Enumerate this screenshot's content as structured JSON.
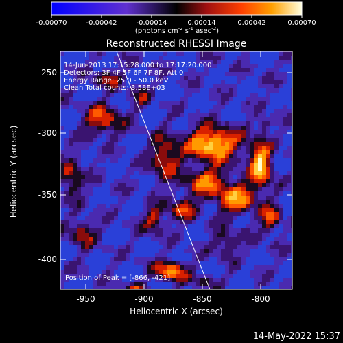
{
  "colorbar": {
    "ticks": [
      "-0.00070",
      "-0.00042",
      "-0.00014",
      "0.00014",
      "0.00042",
      "0.00070"
    ],
    "units_main": "(photons cm",
    "units_sup1": "-2",
    "units_mid1": " s",
    "units_sup2": "-1",
    "units_mid2": " asec",
    "units_sup3": "-2",
    "units_end": ")"
  },
  "title": "Reconstructed RHESSI Image",
  "overlay": {
    "time_range": "14-Jun-2013 17:15:28.000 to 17:17:20.000",
    "detectors": "Detectors: 3F 4F 5F 6F 7F 8F, Att 0",
    "energy": "Energy Range: 25.0 - 50.0 keV",
    "clean": "Clean    Total counts: 3.58E+03",
    "peak": "Position of Peak = [-866, -421]"
  },
  "x_axis": {
    "label": "Heliocentric X (arcsec)",
    "ticks": [
      "-950",
      "-900",
      "-850",
      "-800"
    ],
    "range": [
      -972,
      -773
    ]
  },
  "y_axis": {
    "label": "Heliocentric Y (arcsec)",
    "ticks": [
      "-250",
      "-300",
      "-350",
      "-400"
    ],
    "range": [
      -425,
      -225
    ]
  },
  "footer_date": "14-May-2022 15:37"
}
